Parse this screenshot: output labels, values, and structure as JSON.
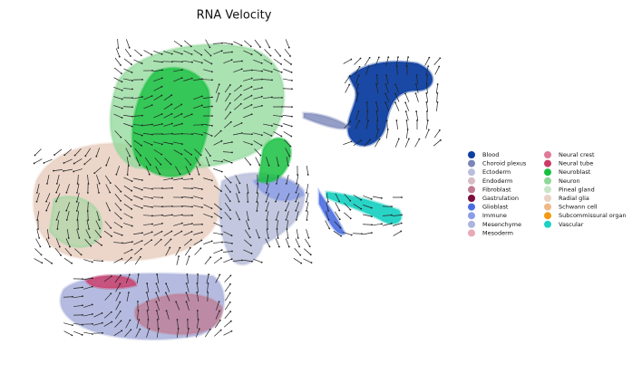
{
  "chart_data": {
    "type": "scatter",
    "title": "RNA Velocity",
    "series": [
      {
        "name": "Blood",
        "color": "#0d3fa0"
      },
      {
        "name": "Choroid plexus",
        "color": "#7b86b8"
      },
      {
        "name": "Ectoderm",
        "color": "#b9bedb"
      },
      {
        "name": "Endoderm",
        "color": "#d8bcc8"
      },
      {
        "name": "Fibroblast",
        "color": "#c07a92"
      },
      {
        "name": "Gastrulation",
        "color": "#7b0c3b"
      },
      {
        "name": "Glioblast",
        "color": "#4a6ee0"
      },
      {
        "name": "Immune",
        "color": "#8a9ee8"
      },
      {
        "name": "Mesenchyme",
        "color": "#adb4dd"
      },
      {
        "name": "Mesoderm",
        "color": "#e8a9b8"
      },
      {
        "name": "Neural crest",
        "color": "#e07a98"
      },
      {
        "name": "Neural tube",
        "color": "#cc3a66"
      },
      {
        "name": "Neuroblast",
        "color": "#18c040"
      },
      {
        "name": "Neuron",
        "color": "#8fd898"
      },
      {
        "name": "Pineal gland",
        "color": "#c9e6c8"
      },
      {
        "name": "Radial glia",
        "color": "#ead2c4"
      },
      {
        "name": "Schwann cell",
        "color": "#f0b888"
      },
      {
        "name": "Subcommissural organ",
        "color": "#f39a10"
      },
      {
        "name": "Vascular",
        "color": "#1dd2c4"
      }
    ]
  }
}
